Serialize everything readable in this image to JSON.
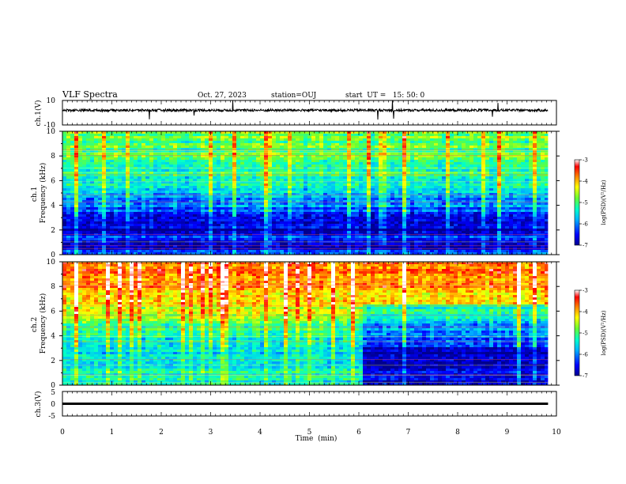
{
  "header": {
    "title": "VLF Spectra",
    "date": "Oct. 27, 2023",
    "station": "station=OUJ",
    "start_ut": "start  UT =   15: 50: 0"
  },
  "chart_data": [
    {
      "type": "line",
      "id": "ch1-waveform",
      "ylabel": "ch.1(V)",
      "ylim": [
        -10,
        10
      ],
      "yticks": [
        "10",
        "-10"
      ],
      "x_range": [
        0,
        9.83
      ],
      "baseline": 2,
      "description_values": {
        "mean_level": 2,
        "noise_amplitude": 1
      }
    },
    {
      "type": "heatmap",
      "id": "ch1-spectrogram",
      "ylabel": "ch.1\nFrequency (kHz)",
      "ylabel_lines": [
        "ch.1",
        "Frequency (kHz)"
      ],
      "ylim": [
        0,
        10
      ],
      "yticks": [
        "0",
        "2",
        "4",
        "6",
        "8",
        "10"
      ],
      "xlim": [
        0,
        10
      ],
      "colorbar": {
        "label": "log(PSD)(V²/Hz)",
        "ticks": [
          "-3",
          "-4",
          "-5",
          "-6",
          "-7"
        ],
        "range": [
          -7,
          -3
        ]
      },
      "profile": [
        {
          "f": 0,
          "v": -6.0
        },
        {
          "f": 0.5,
          "v": -6.8
        },
        {
          "f": 1.0,
          "v": -6.9
        },
        {
          "f": 1.5,
          "v": -6.3
        },
        {
          "f": 2.0,
          "v": -6.9
        },
        {
          "f": 2.5,
          "v": -6.5
        },
        {
          "f": 3.0,
          "v": -6.6
        },
        {
          "f": 3.5,
          "v": -6.2
        },
        {
          "f": 4.0,
          "v": -6.0
        },
        {
          "f": 5.0,
          "v": -5.7
        },
        {
          "f": 6.0,
          "v": -5.4
        },
        {
          "f": 7.0,
          "v": -5.2
        },
        {
          "f": 8.0,
          "v": -5.0
        },
        {
          "f": 9.0,
          "v": -4.9
        },
        {
          "f": 10.0,
          "v": -4.8
        }
      ]
    },
    {
      "type": "heatmap",
      "id": "ch2-spectrogram",
      "ylabel": "ch.2\nFrequency (kHz)",
      "ylabel_lines": [
        "ch.2",
        "Frequency (kHz)"
      ],
      "ylim": [
        0,
        10
      ],
      "yticks": [
        "0",
        "2",
        "4",
        "6",
        "8",
        "10"
      ],
      "xlim": [
        0,
        10
      ],
      "colorbar": {
        "label": "log(PSD)(V²/Hz)",
        "ticks": [
          "-3",
          "-4",
          "-5",
          "-6",
          "-7"
        ],
        "range": [
          -7,
          -3
        ]
      },
      "change_time_min": 6.05,
      "profile": [
        {
          "f": 0,
          "v": -5.4
        },
        {
          "f": 1.0,
          "v": -5.3
        },
        {
          "f": 2.0,
          "v": -5.5
        },
        {
          "f": 3.0,
          "v": -5.5
        },
        {
          "f": 4.0,
          "v": -5.2
        },
        {
          "f": 5.0,
          "v": -4.9
        },
        {
          "f": 6.0,
          "v": -4.5
        },
        {
          "f": 7.0,
          "v": -4.1
        },
        {
          "f": 8.0,
          "v": -3.8
        },
        {
          "f": 9.0,
          "v": -3.7
        },
        {
          "f": 10.0,
          "v": -3.7
        }
      ]
    },
    {
      "type": "line",
      "id": "ch3-waveform",
      "ylabel": "ch.3(V)",
      "ylim": [
        -5,
        5
      ],
      "yticks": [
        "5",
        "0",
        "-5"
      ],
      "x_range": [
        0,
        9.83
      ],
      "baseline": 0
    }
  ],
  "x_axis": {
    "label": "Time  (min)",
    "ticks": [
      "0",
      "1",
      "2",
      "3",
      "4",
      "5",
      "6",
      "7",
      "8",
      "9",
      "10"
    ],
    "range": [
      0,
      10
    ]
  },
  "colors": {
    "colormap": [
      "#00008f",
      "#0000ff",
      "#00b4ff",
      "#00ffcc",
      "#66ff33",
      "#ffff00",
      "#ff8800",
      "#ff0000",
      "#ffffff"
    ]
  }
}
